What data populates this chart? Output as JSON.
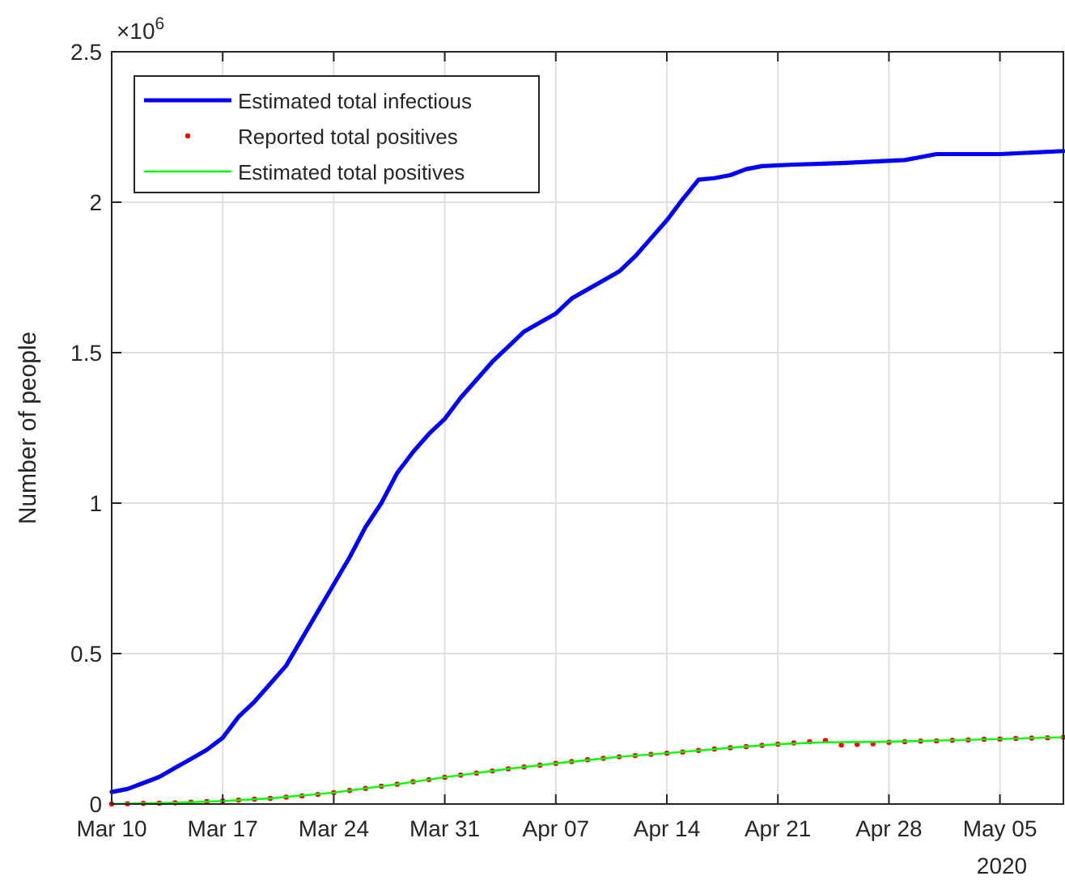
{
  "chart_data": {
    "type": "line",
    "ylabel": "Number of people",
    "annotations": [
      "×10$^{6}$",
      "2020"
    ],
    "xlim": [
      "2020-03-10",
      "2020-05-09"
    ],
    "xticks": [
      {
        "value": "2020-03-10",
        "label": "Mar 10"
      },
      {
        "value": "2020-03-17",
        "label": "Mar 17"
      },
      {
        "value": "2020-03-24",
        "label": "Mar 24"
      },
      {
        "value": "2020-03-31",
        "label": "Mar 31"
      },
      {
        "value": "2020-04-07",
        "label": "Apr 07"
      },
      {
        "value": "2020-04-14",
        "label": "Apr 14"
      },
      {
        "value": "2020-04-21",
        "label": "Apr 21"
      },
      {
        "value": "2020-04-28",
        "label": "Apr 28"
      },
      {
        "value": "2020-05-05",
        "label": "May 05"
      }
    ],
    "ylim": [
      0,
      2.5
    ],
    "yticks": [
      0,
      0.5,
      1,
      1.5,
      2,
      2.5
    ],
    "grid": true,
    "legend": "top left",
    "series": [
      {
        "name": "Estimated total infectious",
        "color": "#0000ff",
        "x": [
          "2020-03-10",
          "2020-03-11",
          "2020-03-12",
          "2020-03-13",
          "2020-03-14",
          "2020-03-15",
          "2020-03-16",
          "2020-03-17",
          "2020-03-18",
          "2020-03-19",
          "2020-03-20",
          "2020-03-21",
          "2020-03-22",
          "2020-03-23",
          "2020-03-24",
          "2020-03-25",
          "2020-03-26",
          "2020-03-27",
          "2020-03-28",
          "2020-03-29",
          "2020-03-30",
          "2020-03-31",
          "2020-04-01",
          "2020-04-02",
          "2020-04-03",
          "2020-04-04",
          "2020-04-05",
          "2020-04-06",
          "2020-04-07",
          "2020-04-08",
          "2020-04-09",
          "2020-04-10",
          "2020-04-11",
          "2020-04-12",
          "2020-04-13",
          "2020-04-14",
          "2020-04-15",
          "2020-04-16",
          "2020-04-17",
          "2020-04-18",
          "2020-04-19",
          "2020-04-20",
          "2020-04-22",
          "2020-04-25",
          "2020-04-29",
          "2020-04-30",
          "2020-05-01",
          "2020-05-05",
          "2020-05-09"
        ],
        "values": [
          0.04,
          0.05,
          0.07,
          0.09,
          0.12,
          0.15,
          0.18,
          0.22,
          0.29,
          0.34,
          0.4,
          0.46,
          0.55,
          0.64,
          0.73,
          0.82,
          0.92,
          1.0,
          1.1,
          1.17,
          1.23,
          1.28,
          1.35,
          1.41,
          1.47,
          1.52,
          1.57,
          1.6,
          1.63,
          1.68,
          1.71,
          1.74,
          1.77,
          1.82,
          1.88,
          1.94,
          2.01,
          2.075,
          2.08,
          2.09,
          2.11,
          2.12,
          2.125,
          2.13,
          2.14,
          2.15,
          2.16,
          2.16,
          2.17
        ]
      },
      {
        "name": "Reported total positives",
        "type": "scatter",
        "marker": "circle",
        "color": "#ff0000",
        "x": [
          "2020-03-10",
          "2020-03-11",
          "2020-03-12",
          "2020-03-13",
          "2020-03-14",
          "2020-03-15",
          "2020-03-16",
          "2020-03-17",
          "2020-03-18",
          "2020-03-19",
          "2020-03-20",
          "2020-03-21",
          "2020-03-22",
          "2020-03-23",
          "2020-03-24",
          "2020-03-25",
          "2020-03-26",
          "2020-03-27",
          "2020-03-28",
          "2020-03-29",
          "2020-03-30",
          "2020-03-31",
          "2020-04-01",
          "2020-04-02",
          "2020-04-03",
          "2020-04-04",
          "2020-04-05",
          "2020-04-06",
          "2020-04-07",
          "2020-04-08",
          "2020-04-09",
          "2020-04-10",
          "2020-04-11",
          "2020-04-12",
          "2020-04-13",
          "2020-04-14",
          "2020-04-15",
          "2020-04-16",
          "2020-04-17",
          "2020-04-18",
          "2020-04-19",
          "2020-04-20",
          "2020-04-21",
          "2020-04-22",
          "2020-04-23",
          "2020-04-24",
          "2020-04-25",
          "2020-04-26",
          "2020-04-27",
          "2020-04-28",
          "2020-04-29",
          "2020-04-30",
          "2020-05-01",
          "2020-05-02",
          "2020-05-03",
          "2020-05-04",
          "2020-05-05",
          "2020-05-06",
          "2020-05-07",
          "2020-05-08",
          "2020-05-09"
        ],
        "values": [
          0,
          0.001,
          0.002,
          0.003,
          0.004,
          0.006,
          0.008,
          0.01,
          0.013,
          0.016,
          0.019,
          0.023,
          0.027,
          0.032,
          0.038,
          0.045,
          0.052,
          0.059,
          0.066,
          0.074,
          0.081,
          0.089,
          0.096,
          0.103,
          0.11,
          0.117,
          0.123,
          0.129,
          0.135,
          0.141,
          0.147,
          0.152,
          0.157,
          0.161,
          0.165,
          0.169,
          0.173,
          0.178,
          0.183,
          0.187,
          0.191,
          0.195,
          0.199,
          0.203,
          0.207,
          0.211,
          0.196,
          0.198,
          0.2,
          0.205,
          0.207,
          0.209,
          0.21,
          0.212,
          0.213,
          0.215,
          0.216,
          0.218,
          0.219,
          0.22,
          0.222
        ]
      },
      {
        "name": "Estimated total positives",
        "color": "#00ff00",
        "x": [
          "2020-03-10",
          "2020-03-14",
          "2020-03-17",
          "2020-03-20",
          "2020-03-24",
          "2020-03-28",
          "2020-03-31",
          "2020-04-04",
          "2020-04-07",
          "2020-04-11",
          "2020-04-14",
          "2020-04-18",
          "2020-04-21",
          "2020-04-24",
          "2020-04-28",
          "2020-05-02",
          "2020-05-05",
          "2020-05-09"
        ],
        "values": [
          0,
          0.004,
          0.01,
          0.019,
          0.038,
          0.066,
          0.089,
          0.117,
          0.135,
          0.157,
          0.169,
          0.187,
          0.199,
          0.205,
          0.207,
          0.212,
          0.216,
          0.222
        ]
      }
    ]
  }
}
